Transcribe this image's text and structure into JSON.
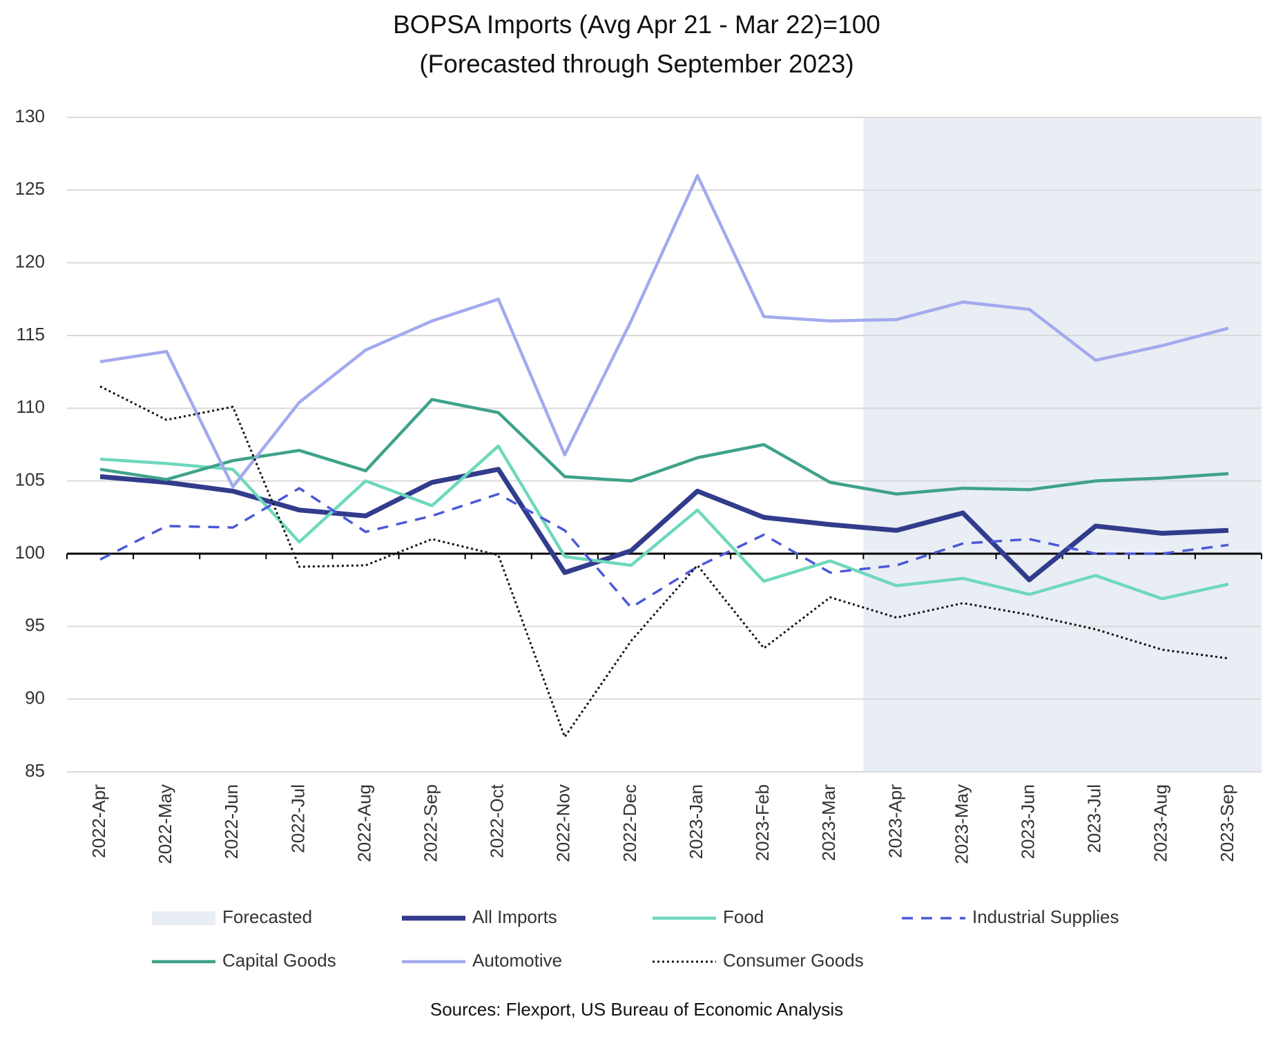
{
  "chart_data": {
    "type": "line",
    "title": [
      "BOPSA Imports (Avg Apr 21 - Mar 22)=100",
      "(Forecasted through September 2023)"
    ],
    "source": "Sources: Flexport, US Bureau of Economic Analysis",
    "categories": [
      "2022-Apr",
      "2022-May",
      "2022-Jun",
      "2022-Jul",
      "2022-Aug",
      "2022-Sep",
      "2022-Oct",
      "2022-Nov",
      "2022-Dec",
      "2023-Jan",
      "2023-Feb",
      "2023-Mar",
      "2023-Apr",
      "2023-May",
      "2023-Jun",
      "2023-Jul",
      "2023-Aug",
      "2023-Sep"
    ],
    "forecast": {
      "label": "Forecasted",
      "start": "2023-Apr",
      "color": "#e9edf4"
    },
    "axis_line_at": 100,
    "series": [
      {
        "name": "All Imports",
        "color": "#323c8c",
        "style": "bold",
        "values": [
          105.3,
          104.9,
          104.3,
          103.0,
          102.6,
          104.9,
          105.8,
          98.7,
          100.2,
          104.3,
          102.5,
          102.0,
          101.6,
          102.8,
          98.2,
          101.9,
          101.4,
          101.6
        ]
      },
      {
        "name": "Food",
        "color": "#6ed8bc",
        "style": "solid",
        "values": [
          106.5,
          106.2,
          105.8,
          100.8,
          105.0,
          103.3,
          107.4,
          99.8,
          99.2,
          103.0,
          98.1,
          99.5,
          97.8,
          98.3,
          97.2,
          98.5,
          96.9,
          97.9
        ]
      },
      {
        "name": "Industrial Supplies",
        "color": "#4a58d8",
        "style": "dashed",
        "values": [
          99.6,
          101.9,
          101.8,
          104.5,
          101.5,
          102.6,
          104.1,
          101.6,
          96.3,
          99.1,
          101.3,
          98.7,
          99.2,
          100.7,
          101.0,
          100.0,
          100.0,
          100.6
        ]
      },
      {
        "name": "Capital Goods",
        "color": "#3ea28a",
        "style": "solid",
        "values": [
          105.8,
          105.1,
          106.4,
          107.1,
          105.7,
          110.6,
          109.7,
          105.3,
          105.0,
          106.6,
          107.5,
          104.9,
          104.1,
          104.5,
          104.4,
          105.0,
          105.2,
          105.5
        ]
      },
      {
        "name": "Automotive",
        "color": "#a2aaee",
        "style": "solid",
        "values": [
          113.2,
          113.9,
          104.6,
          110.4,
          114.0,
          116.0,
          117.5,
          106.8,
          116.0,
          126.0,
          116.3,
          116.0,
          116.1,
          117.3,
          116.8,
          113.3,
          114.3,
          115.5
        ]
      },
      {
        "name": "Consumer Goods",
        "color": "#111111",
        "style": "dotted",
        "values": [
          111.5,
          109.2,
          110.1,
          99.1,
          99.2,
          101.0,
          99.9,
          87.4,
          94.0,
          99.2,
          93.5,
          97.0,
          95.6,
          96.6,
          95.8,
          94.8,
          93.4,
          92.8
        ]
      }
    ],
    "ylim": [
      85,
      130
    ],
    "yticks": [
      85,
      90,
      95,
      100,
      105,
      110,
      115,
      120,
      125,
      130
    ],
    "grid": true
  }
}
